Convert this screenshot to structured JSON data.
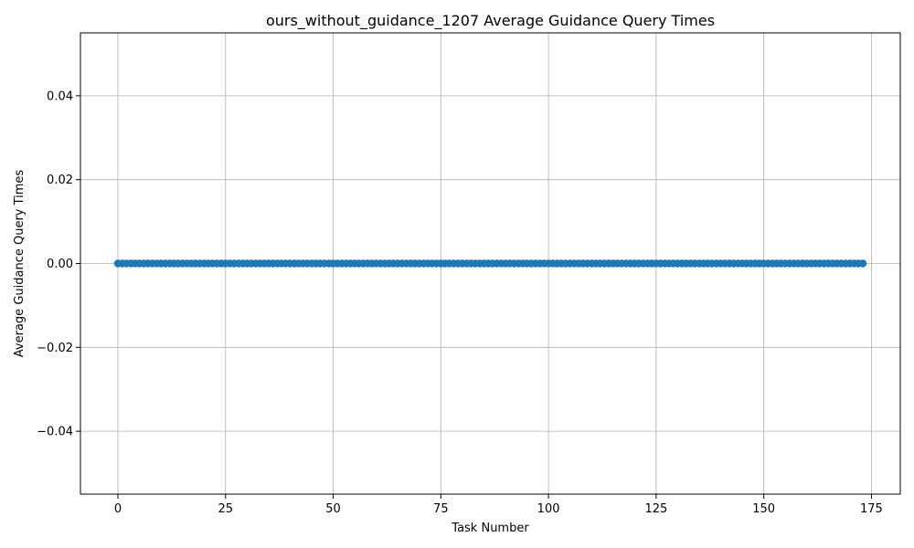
{
  "chart_data": {
    "type": "line",
    "title": "ours_without_guidance_1207 Average Guidance Query Times",
    "xlabel": "Task Number",
    "ylabel": "Average Guidance Query Times",
    "xlim": [
      -8.7,
      181.7
    ],
    "ylim": [
      -0.055,
      0.055
    ],
    "x_ticks": [
      0,
      25,
      50,
      75,
      100,
      125,
      150,
      175
    ],
    "x_tick_labels": [
      "0",
      "25",
      "50",
      "75",
      "100",
      "125",
      "150",
      "175"
    ],
    "y_ticks": [
      -0.04,
      -0.02,
      0.0,
      0.02,
      0.04
    ],
    "y_tick_labels": [
      "−0.04",
      "−0.02",
      "0.00",
      "0.02",
      "0.04"
    ],
    "grid": true,
    "marker": "circle",
    "series": [
      {
        "color": "#1f77b4",
        "x_start": 0,
        "x_end": 173,
        "x_step": 1,
        "constant_y": 0.0
      }
    ]
  }
}
